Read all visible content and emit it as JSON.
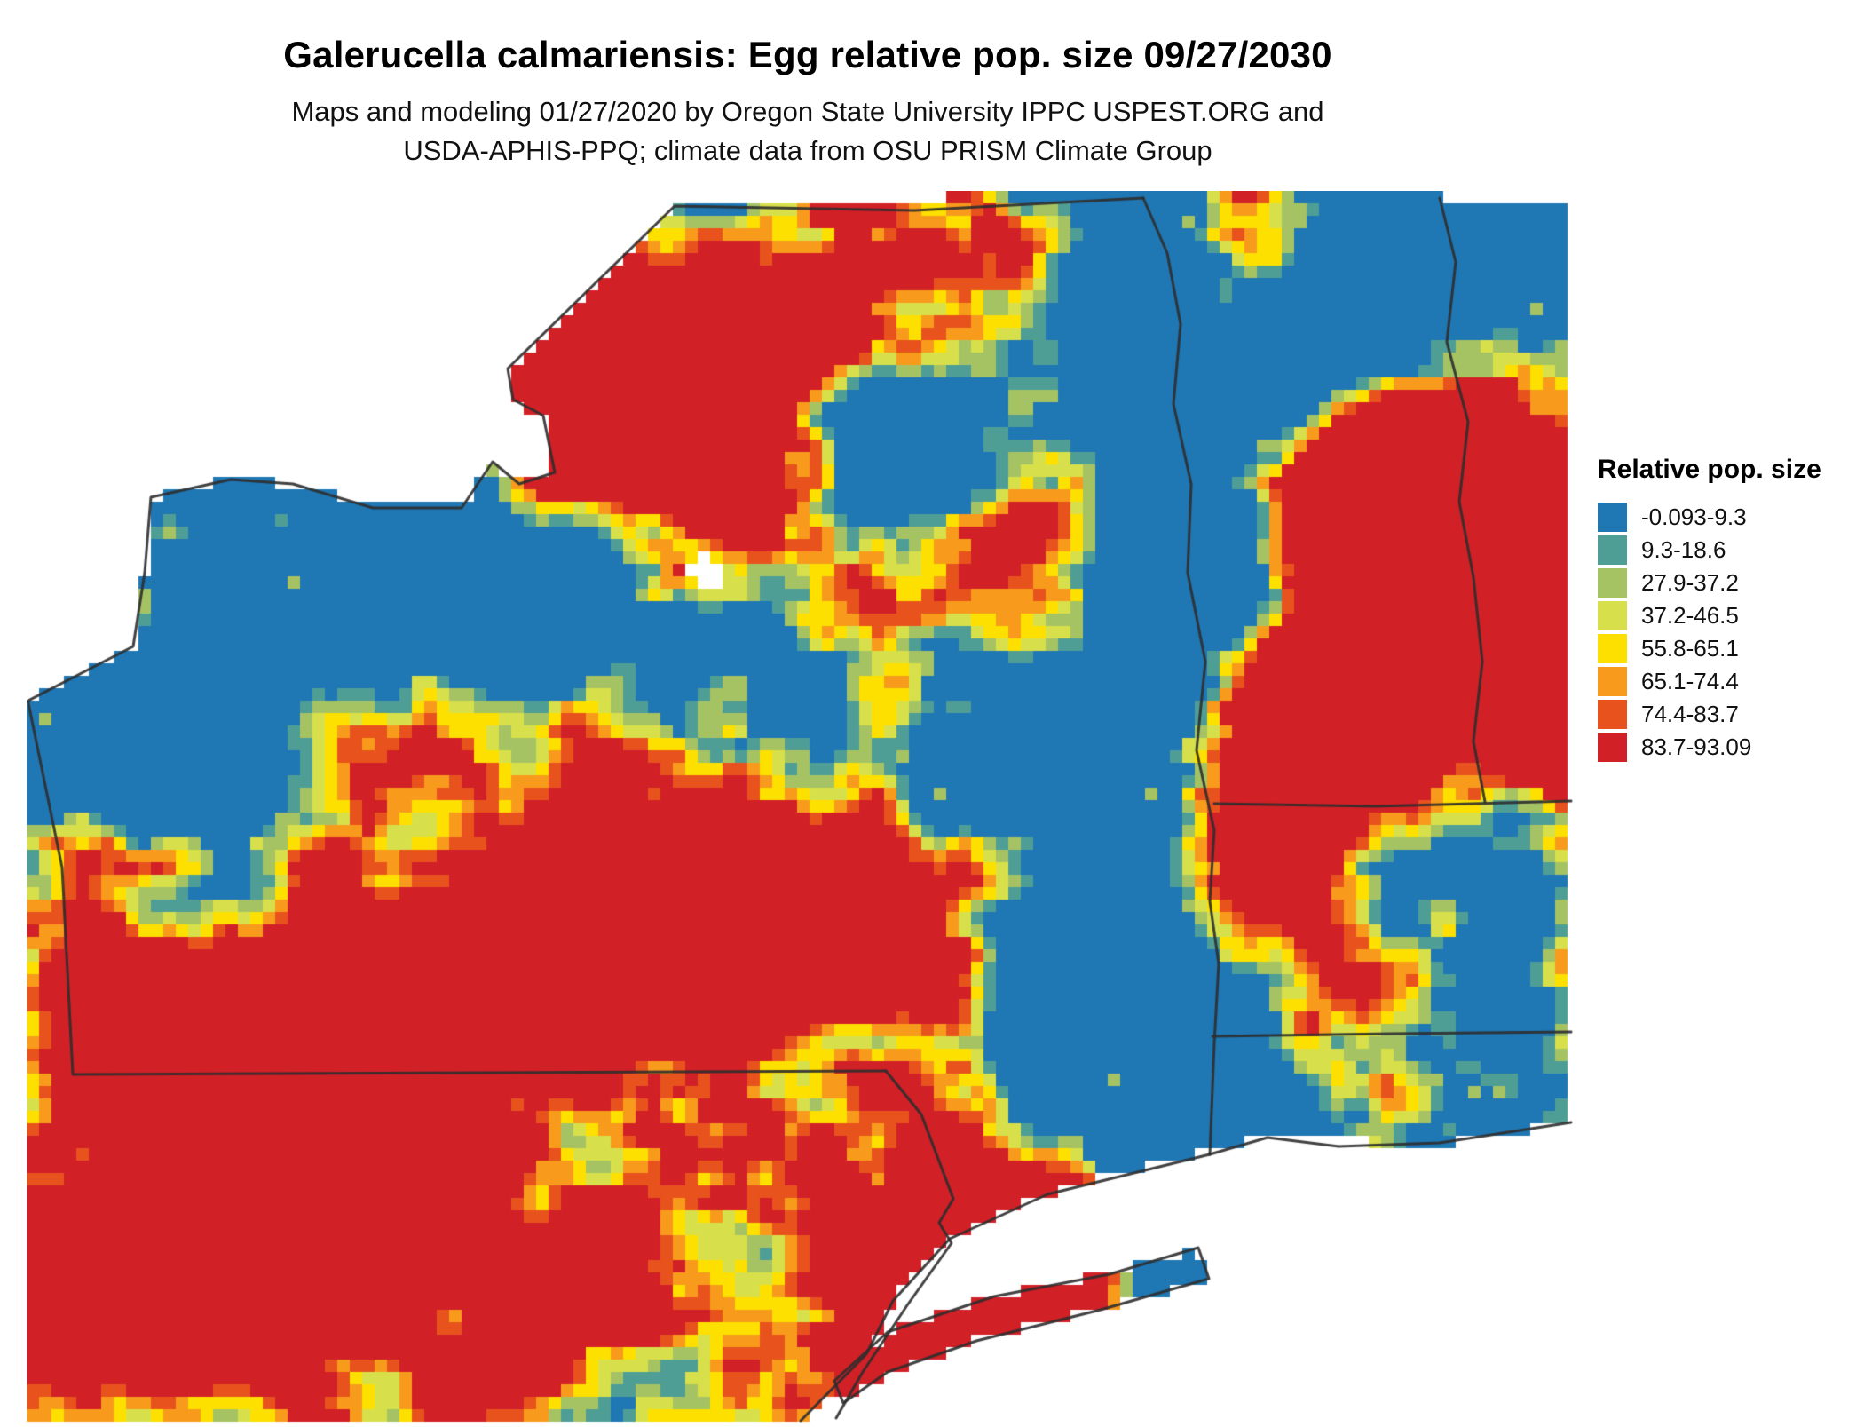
{
  "page": {
    "title": "Galerucella calmariensis: Egg relative pop. size 09/27/2030",
    "subtitle_line1": "Maps and modeling 01/27/2020 by Oregon State University IPPC USPEST.ORG and",
    "subtitle_line2": "USDA-APHIS-PPQ; climate data from OSU PRISM Climate Group"
  },
  "legend": {
    "title": "Relative pop. size",
    "entries": [
      {
        "label": "-0.093-9.3",
        "color": "#1f77b4"
      },
      {
        "label": "9.3-18.6",
        "color": "#4f9e96"
      },
      {
        "label": "27.9-37.2",
        "color": "#a6c364"
      },
      {
        "label": "37.2-46.5",
        "color": "#d7e04a"
      },
      {
        "label": "55.8-65.1",
        "color": "#fee000"
      },
      {
        "label": "65.1-74.4",
        "color": "#f89b1c"
      },
      {
        "label": "74.4-83.7",
        "color": "#e8531d"
      },
      {
        "label": "83.7-93.09",
        "color": "#d22027"
      }
    ]
  },
  "map": {
    "type": "raster-relative-population-map",
    "region": "New York, Vermont and surrounding northeastern US states",
    "water_color": "#ffffff",
    "state_border_color": "#2d2d2d",
    "base_fill_color": "#1f77b4"
  }
}
